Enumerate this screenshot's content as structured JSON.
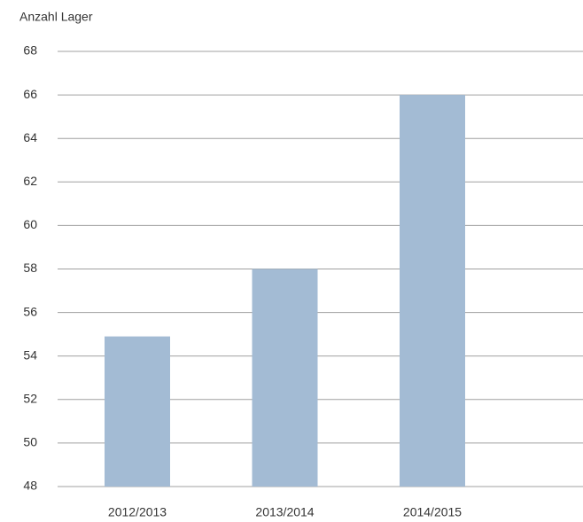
{
  "chart_data": {
    "type": "bar",
    "y_axis_label": "Anzahl Lager",
    "categories": [
      "2012/2013",
      "2013/2014",
      "2014/2015"
    ],
    "values": [
      54.9,
      58,
      66
    ],
    "color": "#a3bbd4",
    "ylim": [
      48,
      68
    ],
    "yticks": [
      48,
      50,
      52,
      54,
      56,
      58,
      60,
      62,
      64,
      66,
      68
    ],
    "grid": true
  }
}
